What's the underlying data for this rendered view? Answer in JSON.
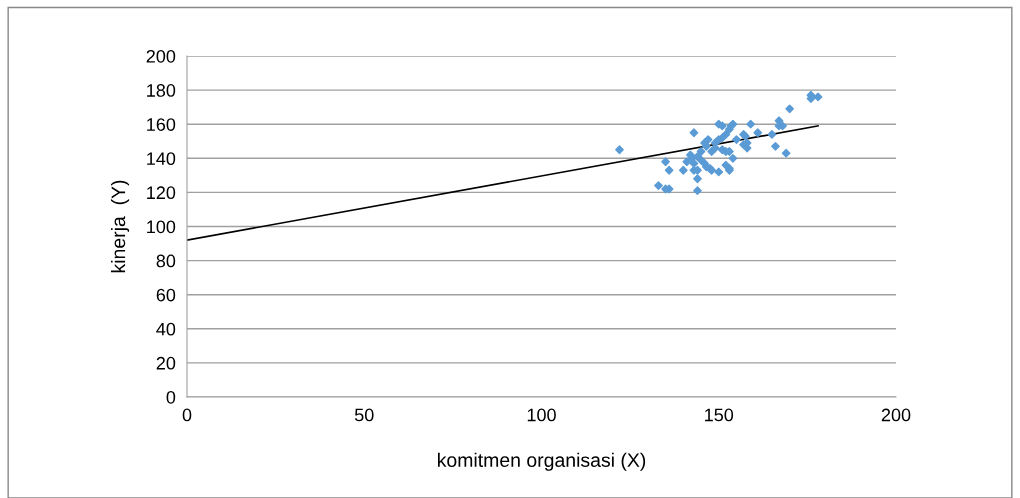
{
  "chart_data": {
    "type": "scatter",
    "xlabel": "komitmen organisasi (X)",
    "ylabel": "kinerja  (Y)",
    "xlim": [
      0,
      200
    ],
    "ylim": [
      0,
      200
    ],
    "xticks": [
      0,
      50,
      100,
      150,
      200
    ],
    "yticks": [
      0,
      20,
      40,
      60,
      80,
      100,
      120,
      140,
      160,
      180,
      200
    ],
    "grid": "y",
    "series": [
      {
        "color": "#5b9bd5",
        "marker": "diamond",
        "x": [
          122,
          133,
          135,
          135,
          136,
          136,
          140,
          141,
          142,
          142.5,
          143,
          143,
          144,
          143,
          144,
          144,
          144,
          145,
          145,
          146,
          146,
          146.5,
          146.5,
          147,
          147.5,
          148,
          148,
          149,
          149,
          150,
          150,
          150,
          151,
          151,
          151,
          152,
          152,
          152,
          153,
          153,
          153,
          153,
          153.5,
          154,
          154,
          155,
          157,
          157,
          157.5,
          158,
          158,
          159,
          161,
          165,
          166,
          167,
          167,
          168,
          169,
          170,
          176,
          176,
          178
        ],
        "values": [
          145,
          124,
          138,
          122,
          122,
          133,
          133,
          138,
          142,
          140,
          155,
          137,
          141,
          133,
          128,
          121,
          133,
          144,
          139,
          149,
          137,
          147,
          135,
          151,
          134,
          144,
          133,
          149,
          146,
          160,
          132,
          151,
          152,
          159,
          145,
          144,
          136,
          154,
          157,
          144,
          133,
          134,
          159,
          160,
          140,
          151,
          154,
          148,
          153,
          146,
          149,
          160,
          155,
          154,
          147,
          162,
          159,
          159,
          143,
          169,
          175,
          177,
          176
        ]
      },
      {
        "type": "line",
        "marker": "none",
        "color": "#000000",
        "x": [
          0,
          178
        ],
        "values": [
          92,
          159
        ]
      }
    ]
  }
}
